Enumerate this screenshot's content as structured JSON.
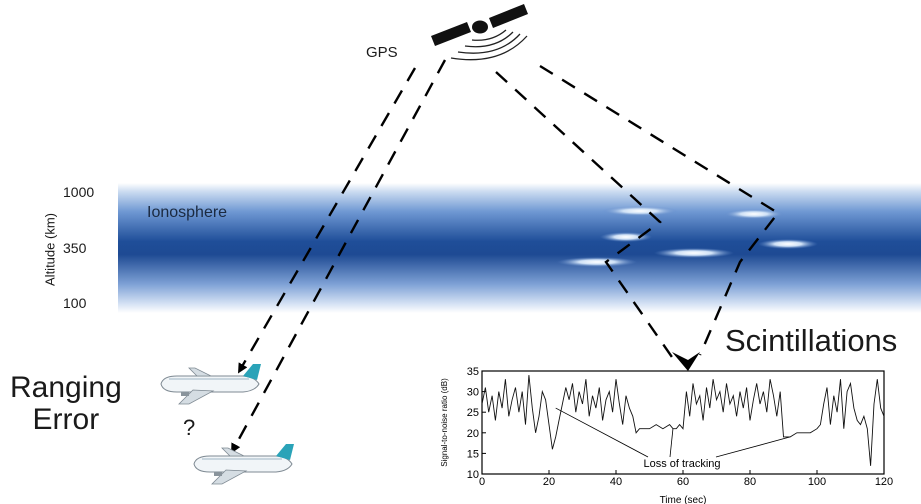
{
  "gps": {
    "label": "GPS"
  },
  "ionosphere": {
    "label": "Ionosphere"
  },
  "altitude_axis": {
    "title": "Altitude (km)",
    "ticks": [
      "1000",
      "350",
      "100"
    ]
  },
  "ranging": {
    "label": "Ranging\nError",
    "question": "?"
  },
  "scintillations": {
    "label": "Scintillations"
  },
  "colors": {
    "iono_dark": "#1f4e99",
    "iono_light": "#e9f1fb",
    "plane_accent": "#2aa3b8",
    "satellite": "#111111"
  },
  "chart_data": {
    "type": "line",
    "xlabel": "Time (sec)",
    "ylabel": "Signal-to-noise ratio (dB)",
    "xlim": [
      0,
      120
    ],
    "ylim": [
      10,
      35
    ],
    "xticks": [
      0,
      20,
      40,
      60,
      80,
      100,
      120
    ],
    "yticks": [
      10,
      15,
      20,
      25,
      30,
      35
    ],
    "annotation": "Loss of tracking",
    "series": [
      {
        "x": [
          0,
          1,
          2,
          3,
          4,
          5,
          6,
          7,
          8,
          9,
          10,
          11,
          12,
          13,
          14,
          15,
          16,
          17,
          18,
          19,
          20,
          21,
          22,
          23,
          24,
          25,
          26,
          27,
          28,
          29,
          30,
          31,
          32,
          33,
          34,
          35,
          36,
          37,
          38,
          39,
          40,
          41,
          42,
          43,
          44,
          45,
          46,
          47,
          48,
          50,
          52,
          54,
          56,
          57,
          58,
          59,
          60,
          61,
          62,
          63,
          64,
          65,
          66,
          67,
          68,
          69,
          70,
          71,
          72,
          73,
          74,
          75,
          76,
          77,
          78,
          79,
          80,
          81,
          82,
          83,
          84,
          85,
          86,
          87,
          88,
          89,
          90,
          92,
          94,
          96,
          98,
          100,
          101,
          102,
          103,
          104,
          105,
          106,
          107,
          108,
          109,
          110,
          111,
          112,
          113,
          114,
          115,
          116,
          117,
          118,
          119,
          120
        ],
        "y": [
          27,
          31,
          25,
          29,
          23,
          30,
          26,
          33,
          24,
          28,
          31,
          25,
          30,
          22,
          34,
          26,
          20,
          24,
          30,
          28,
          22,
          16,
          19,
          23,
          27,
          31,
          28,
          32,
          25,
          30,
          27,
          33,
          24,
          29,
          26,
          31,
          23,
          28,
          30,
          25,
          33,
          27,
          22,
          29,
          26,
          24,
          20,
          21,
          21,
          21,
          22,
          21,
          22,
          21,
          21,
          22,
          21,
          30,
          24,
          32,
          27,
          29,
          23,
          31,
          26,
          33,
          28,
          30,
          25,
          32,
          27,
          29,
          24,
          30,
          26,
          31,
          23,
          28,
          32,
          27,
          30,
          25,
          33,
          29,
          24,
          30,
          19,
          19,
          20,
          20,
          20,
          21,
          22,
          27,
          31,
          22,
          29,
          25,
          33,
          21,
          30,
          32,
          26,
          23,
          22,
          24,
          21,
          12,
          27,
          33,
          26,
          24
        ]
      }
    ]
  }
}
